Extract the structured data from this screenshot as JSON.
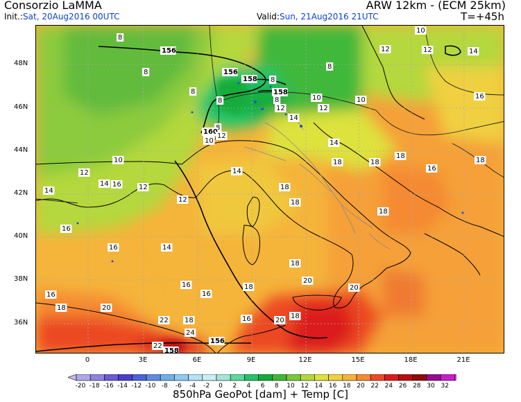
{
  "header": {
    "source": "Consorzio LaMMA",
    "model": "ARW 12km  -  (ECM 25km)",
    "init_label": "Init.:",
    "init_value": "Sat, 20Aug2016 00UTC",
    "valid_label": "Valid:",
    "valid_value": "Sun, 21Aug2016 21UTC",
    "step": "T=+45h"
  },
  "axes": {
    "lat_labels": [
      "48N",
      "46N",
      "44N",
      "42N",
      "40N",
      "38N",
      "36N"
    ],
    "lon_labels": [
      "0",
      "3E",
      "6E",
      "9E",
      "12E",
      "15E",
      "18E",
      "21E"
    ]
  },
  "colorbar": {
    "ticks": [
      "-20",
      "-18",
      "-16",
      "-14",
      "-12",
      "-10",
      "-8",
      "-6",
      "-4",
      "-2",
      "0",
      "2",
      "4",
      "6",
      "8",
      "10",
      "12",
      "14",
      "16",
      "18",
      "20",
      "22",
      "24",
      "26",
      "28",
      "30",
      "32"
    ],
    "colors": [
      "#aea7e8",
      "#8f83e0",
      "#6a5bd6",
      "#4a3ecc",
      "#4f63d8",
      "#5e8ce0",
      "#6fb0e6",
      "#8fcaf0",
      "#b3e2f5",
      "#c8f0f5",
      "#a4e6d6",
      "#5cd89c",
      "#22c46a",
      "#12ac3a",
      "#3fb83a",
      "#78c83a",
      "#b4d83c",
      "#dde23c",
      "#f0d040",
      "#f5b43a",
      "#f58a32",
      "#ec4a24",
      "#dc1c1c",
      "#b80e12",
      "#8e0a0a",
      "#9a0a8e",
      "#c81ec8"
    ],
    "left_arrow_color": "#c8b8f0",
    "right_arrow_color": "#f028f0"
  },
  "map": {
    "labels": [
      {
        "t": "8"
      },
      {
        "t": "156"
      },
      {
        "t": "8"
      },
      {
        "t": "156"
      },
      {
        "t": "158"
      },
      {
        "t": "8"
      },
      {
        "t": "8"
      },
      {
        "t": "8"
      },
      {
        "t": "158"
      },
      {
        "t": "8"
      },
      {
        "t": "8"
      },
      {
        "t": "8"
      },
      {
        "t": "160"
      },
      {
        "t": "10"
      },
      {
        "t": "12"
      },
      {
        "t": "10"
      },
      {
        "t": "10"
      },
      {
        "t": "12"
      },
      {
        "t": "12"
      },
      {
        "t": "14"
      },
      {
        "t": "10"
      },
      {
        "t": "12"
      },
      {
        "t": "10"
      },
      {
        "t": "16"
      },
      {
        "t": "12"
      },
      {
        "t": "14"
      },
      {
        "t": "14"
      },
      {
        "t": "18"
      },
      {
        "t": "18"
      },
      {
        "t": "16"
      },
      {
        "t": "18"
      },
      {
        "t": "10"
      },
      {
        "t": "12"
      },
      {
        "t": "14"
      },
      {
        "t": "16"
      },
      {
        "t": "14"
      },
      {
        "t": "12"
      },
      {
        "t": "12"
      },
      {
        "t": "14"
      },
      {
        "t": "18"
      },
      {
        "t": "18"
      },
      {
        "t": "18"
      },
      {
        "t": "16"
      },
      {
        "t": "18"
      },
      {
        "t": "16"
      },
      {
        "t": "14"
      },
      {
        "t": "18"
      },
      {
        "t": "20"
      },
      {
        "t": "20"
      },
      {
        "t": "16"
      },
      {
        "t": "16"
      },
      {
        "t": "18"
      },
      {
        "t": "16"
      },
      {
        "t": "18"
      },
      {
        "t": "20"
      },
      {
        "t": "22"
      },
      {
        "t": "18"
      },
      {
        "t": "24"
      },
      {
        "t": "16"
      },
      {
        "t": "20"
      },
      {
        "t": "22"
      },
      {
        "t": "158"
      },
      {
        "t": "156"
      },
      {
        "t": "18"
      }
    ]
  },
  "footer": "850hPa GeoPot [dam] + Temp [C]"
}
